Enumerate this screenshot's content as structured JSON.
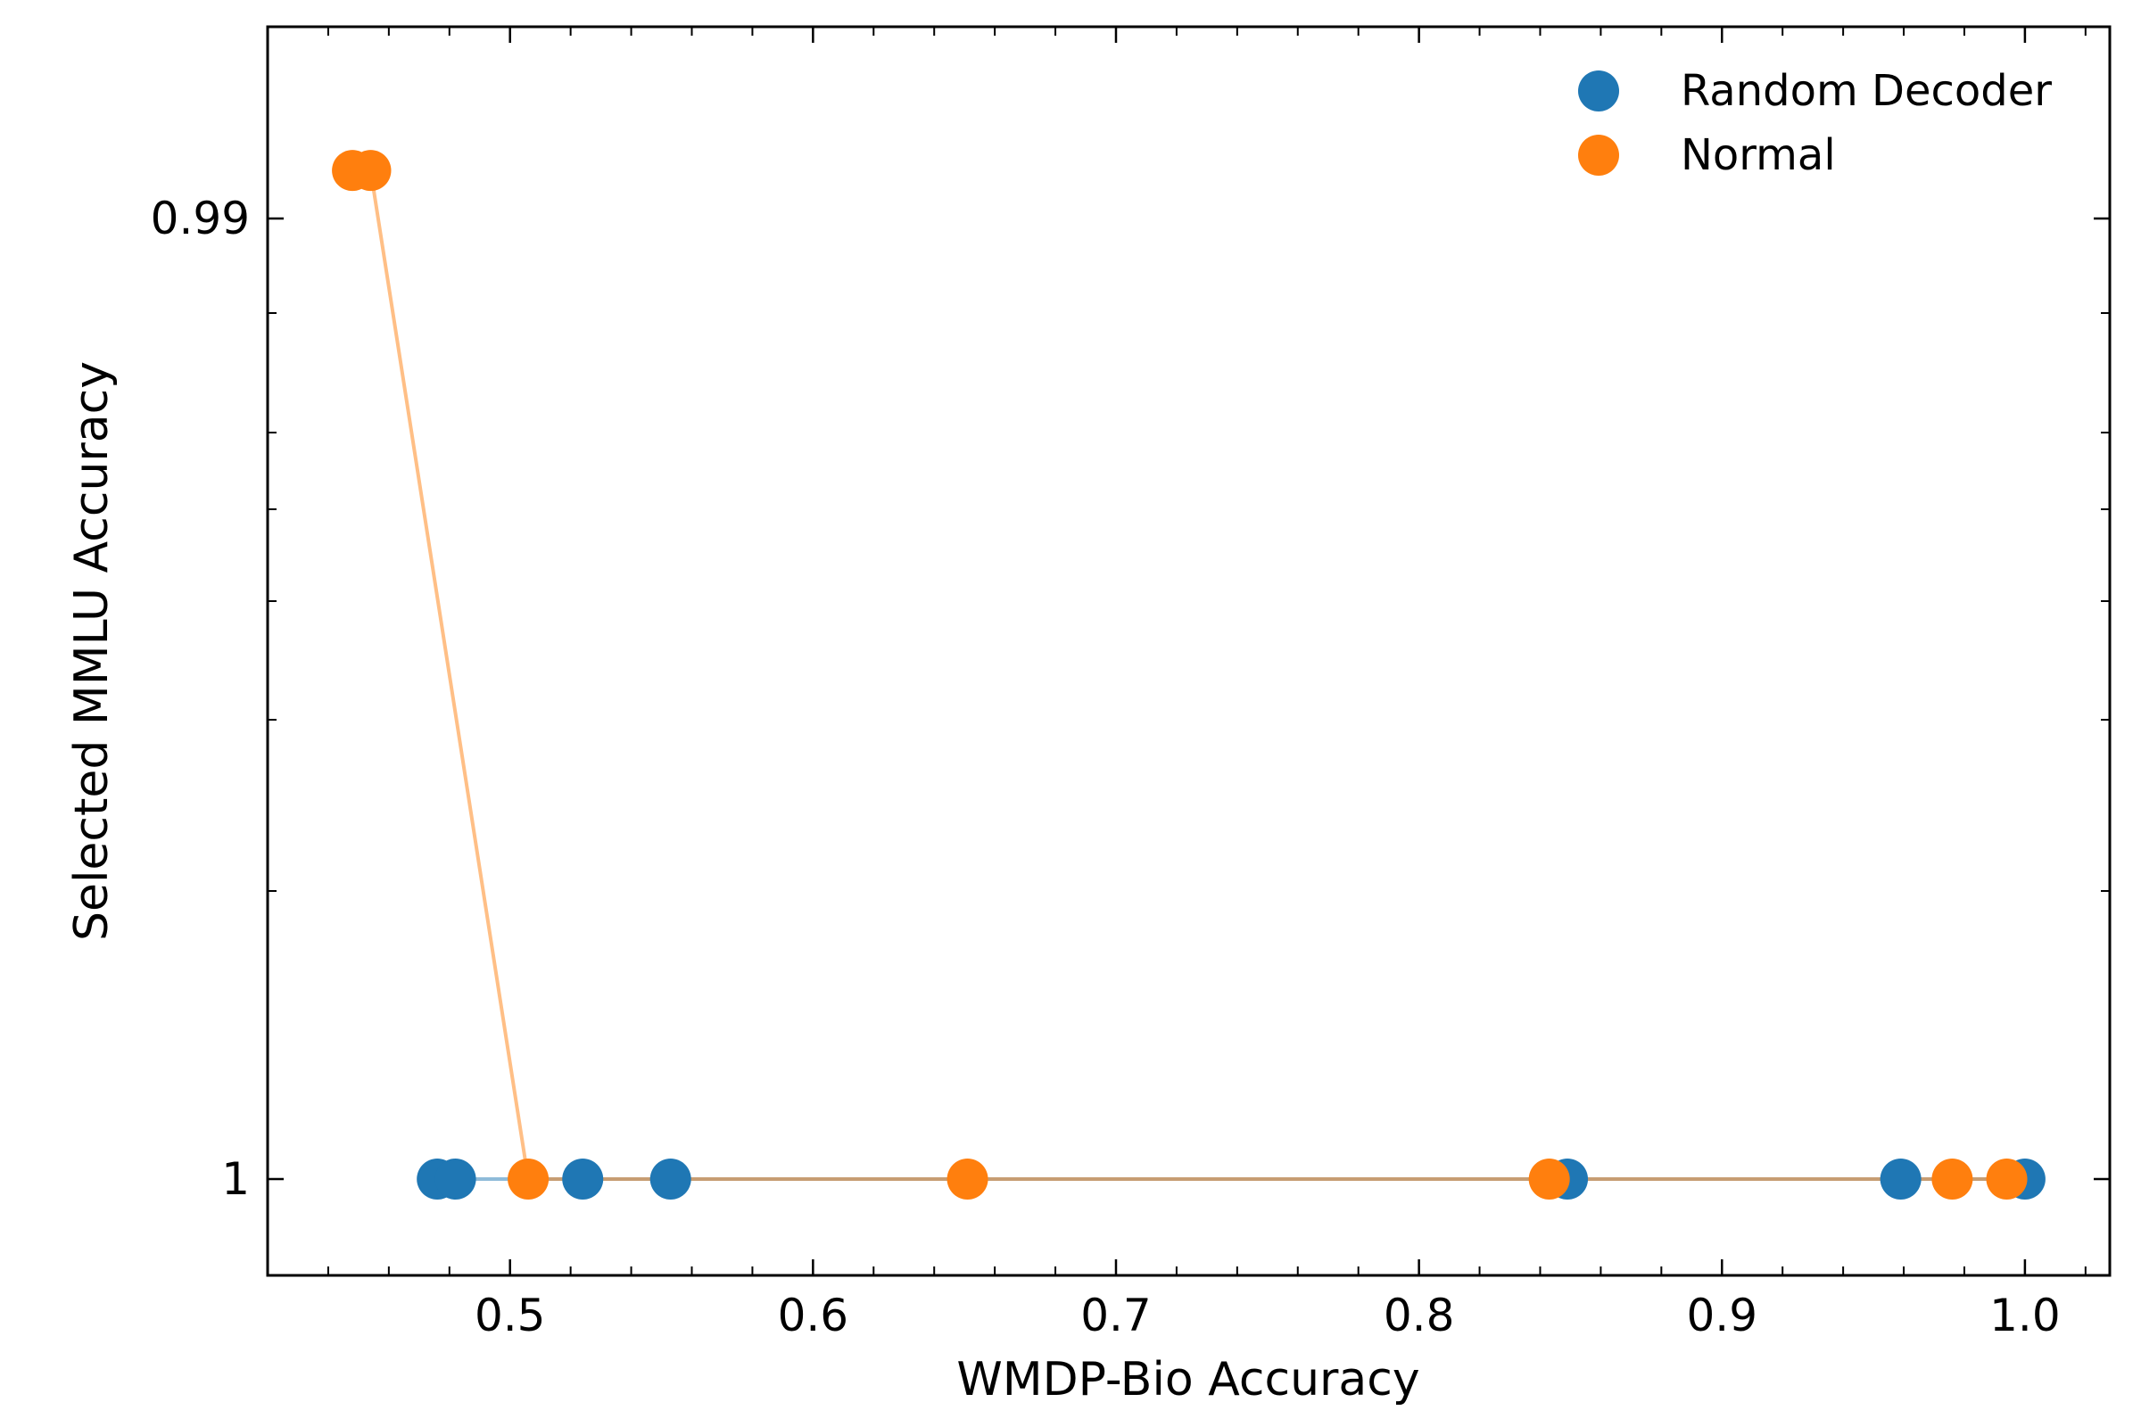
{
  "chart_data": {
    "type": "scatter",
    "xlabel": "WMDP-Bio Accuracy",
    "ylabel": "Selected MMLU Accuracy",
    "xlim": [
      0.42,
      1.028
    ],
    "y_ticks": [
      {
        "value": 0.99,
        "label": "0.99"
      },
      {
        "value": 1.0,
        "label": "1"
      }
    ],
    "y_tick_labels_shown_as_printed": true,
    "x_ticks": [
      {
        "value": 0.5,
        "label": "0.5"
      },
      {
        "value": 0.6,
        "label": "0.6"
      },
      {
        "value": 0.7,
        "label": "0.7"
      },
      {
        "value": 0.8,
        "label": "0.8"
      },
      {
        "value": 0.9,
        "label": "0.9"
      },
      {
        "value": 1.0,
        "label": "1.0"
      }
    ],
    "x_minor_step": 0.02,
    "legend_position": "top-right",
    "series": [
      {
        "name": "Random Decoder",
        "color": "#1f77b4",
        "points": [
          {
            "x": 0.476,
            "y": 1.0
          },
          {
            "x": 0.482,
            "y": 1.0
          },
          {
            "x": 0.524,
            "y": 1.0
          },
          {
            "x": 0.553,
            "y": 1.0
          },
          {
            "x": 0.849,
            "y": 1.0
          },
          {
            "x": 0.959,
            "y": 1.0
          },
          {
            "x": 1.0,
            "y": 1.0
          }
        ]
      },
      {
        "name": "Normal",
        "color": "#ff7f0e",
        "points": [
          {
            "x": 0.448,
            "y": 0.9895
          },
          {
            "x": 0.454,
            "y": 0.9895
          },
          {
            "x": 0.506,
            "y": 1.0
          },
          {
            "x": 0.651,
            "y": 1.0
          },
          {
            "x": 0.843,
            "y": 1.0
          },
          {
            "x": 0.976,
            "y": 1.0
          },
          {
            "x": 0.994,
            "y": 1.0
          }
        ]
      }
    ]
  }
}
